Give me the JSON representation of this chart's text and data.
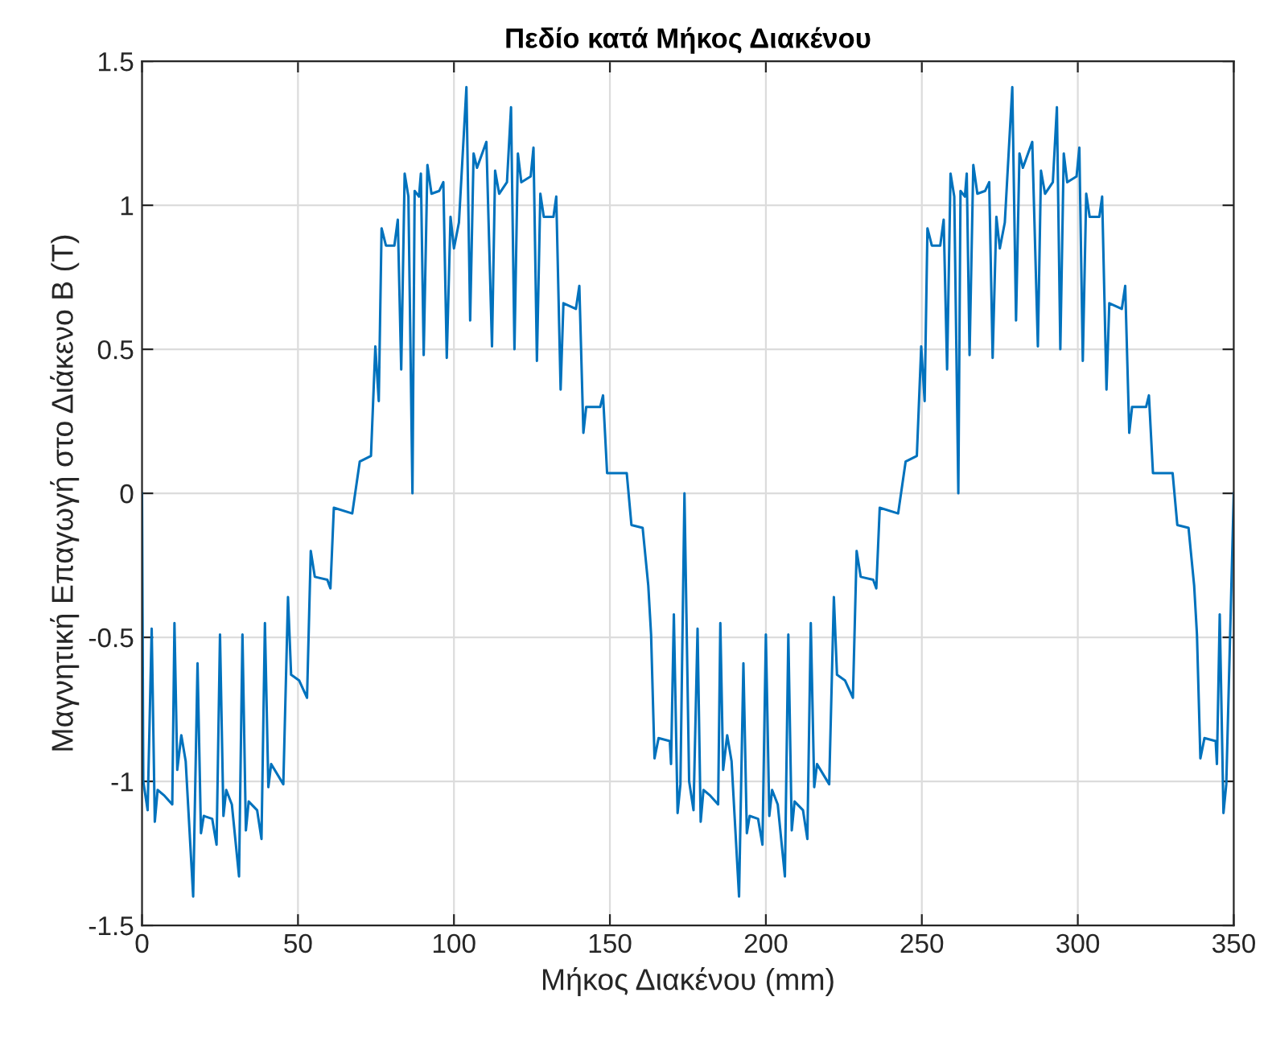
{
  "chart_data": {
    "type": "line",
    "title": "Πεδίο κατά Μήκος Διακένου",
    "xlabel": "Μήκος Διακένου (mm)",
    "ylabel": "Μαγνητική Επαγωγή στο Διάκενο B (T)",
    "xlim": [
      0,
      350
    ],
    "ylim": [
      -1.5,
      1.5
    ],
    "xticks": [
      0,
      50,
      100,
      150,
      200,
      250,
      300,
      350
    ],
    "yticks": [
      -1.5,
      -1,
      -0.5,
      0,
      0.5,
      1,
      1.5
    ],
    "grid": true,
    "line_style": "solid",
    "marker": "none",
    "series": [
      {
        "color": "#0072bd",
        "x": [
          0,
          0.4,
          1.8,
          3.1,
          4.1,
          5.0,
          7.2,
          9.7,
          10.4,
          11.3,
          12.6,
          14.0,
          16.4,
          17.8,
          18.9,
          19.8,
          22.5,
          23.9,
          25.0,
          26.1,
          27.0,
          28.8,
          31.1,
          32.2,
          33.3,
          34.2,
          36.9,
          38.3,
          39.4,
          40.5,
          41.4,
          45.3,
          46.8,
          47.8,
          50.4,
          52.9,
          54.1,
          55.4,
          59.4,
          60.4,
          61.5,
          67.4,
          69.8,
          73.4,
          74.8,
          75.9,
          76.8,
          78.2,
          80.9,
          82.0,
          83.1,
          84.2,
          85.4,
          86.7,
          87.4,
          88.8,
          89.4,
          90.3,
          91.5,
          92.8,
          95.3,
          96.6,
          97.7,
          98.9,
          100.0,
          101.6,
          104.0,
          105.2,
          106.3,
          107.4,
          110.4,
          112.2,
          113.2,
          114.5,
          117.0,
          118.3,
          119.4,
          120.5,
          121.6,
          124.6,
          125.5,
          126.6,
          127.7,
          128.8,
          131.9,
          132.8,
          134.2,
          135.1,
          139.1,
          140.2,
          141.5,
          142.4,
          146.9,
          147.8,
          149.1,
          155.4,
          156.9,
          160.5,
          162.3,
          163.2,
          164.3,
          165.6,
          169.2,
          169.6,
          170.5,
          171.7,
          172.6,
          173.9,
          175.4,
          176.8,
          178.1,
          179.1,
          180.0,
          182.2,
          184.7,
          185.4,
          186.3,
          187.6,
          189.0,
          191.4,
          192.8,
          193.9,
          194.8,
          197.5,
          198.9,
          200.0,
          201.1,
          202.0,
          203.8,
          206.1,
          207.2,
          208.3,
          209.2,
          211.9,
          213.3,
          214.4,
          215.5,
          216.4,
          220.3,
          221.8,
          222.8,
          225.4,
          227.9,
          229.1,
          230.4,
          234.4,
          235.4,
          236.5,
          242.4,
          244.8,
          248.4,
          249.8,
          250.9,
          251.8,
          253.2,
          255.9,
          257.0,
          258.1,
          259.2,
          260.4,
          261.7,
          262.4,
          263.8,
          264.4,
          265.3,
          266.5,
          267.8,
          270.3,
          271.6,
          272.7,
          273.9,
          275.0,
          276.6,
          279.0,
          280.2,
          281.3,
          282.4,
          285.4,
          287.2,
          288.2,
          289.5,
          292.0,
          293.3,
          294.4,
          295.5,
          296.6,
          299.6,
          300.5,
          301.6,
          302.7,
          303.8,
          306.9,
          307.8,
          309.2,
          310.1,
          314.1,
          315.2,
          316.5,
          317.4,
          321.9,
          322.8,
          324.1,
          330.4,
          331.9,
          335.5,
          337.3,
          338.2,
          339.3,
          340.6,
          344.2,
          344.6,
          345.5,
          346.7,
          347.6,
          350
        ],
        "values": [
          0,
          -1.0,
          -1.1,
          -0.47,
          -1.14,
          -1.03,
          -1.05,
          -1.08,
          -0.45,
          -0.96,
          -0.84,
          -0.93,
          -1.4,
          -0.59,
          -1.18,
          -1.12,
          -1.13,
          -1.22,
          -0.49,
          -1.12,
          -1.03,
          -1.08,
          -1.33,
          -0.49,
          -1.17,
          -1.07,
          -1.1,
          -1.2,
          -0.45,
          -1.02,
          -0.94,
          -1.01,
          -0.36,
          -0.63,
          -0.65,
          -0.71,
          -0.2,
          -0.29,
          -0.3,
          -0.33,
          -0.05,
          -0.07,
          0.11,
          0.13,
          0.51,
          0.32,
          0.92,
          0.86,
          0.86,
          0.95,
          0.43,
          1.11,
          1.03,
          0.0,
          1.05,
          1.03,
          1.11,
          0.48,
          1.14,
          1.04,
          1.05,
          1.08,
          0.47,
          0.96,
          0.85,
          0.94,
          1.41,
          0.6,
          1.18,
          1.13,
          1.22,
          0.51,
          1.12,
          1.04,
          1.08,
          1.34,
          0.5,
          1.18,
          1.08,
          1.1,
          1.2,
          0.46,
          1.04,
          0.96,
          0.96,
          1.03,
          0.36,
          0.66,
          0.64,
          0.72,
          0.21,
          0.3,
          0.3,
          0.34,
          0.07,
          0.07,
          -0.11,
          -0.12,
          -0.32,
          -0.49,
          -0.92,
          -0.85,
          -0.86,
          -0.94,
          -0.42,
          -1.11,
          -1.01,
          0.0,
          -1.0,
          -1.1,
          -0.47,
          -1.14,
          -1.03,
          -1.05,
          -1.08,
          -0.45,
          -0.96,
          -0.84,
          -0.93,
          -1.4,
          -0.59,
          -1.18,
          -1.12,
          -1.13,
          -1.22,
          -0.49,
          -1.12,
          -1.03,
          -1.08,
          -1.33,
          -0.49,
          -1.17,
          -1.07,
          -1.1,
          -1.2,
          -0.45,
          -1.02,
          -0.94,
          -1.01,
          -0.36,
          -0.63,
          -0.65,
          -0.71,
          -0.2,
          -0.29,
          -0.3,
          -0.33,
          -0.05,
          -0.07,
          0.11,
          0.13,
          0.51,
          0.32,
          0.92,
          0.86,
          0.86,
          0.95,
          0.43,
          1.11,
          1.03,
          0.0,
          1.05,
          1.03,
          1.11,
          0.48,
          1.14,
          1.04,
          1.05,
          1.08,
          0.47,
          0.96,
          0.85,
          0.94,
          1.41,
          0.6,
          1.18,
          1.13,
          1.22,
          0.51,
          1.12,
          1.04,
          1.08,
          1.34,
          0.5,
          1.18,
          1.08,
          1.1,
          1.2,
          0.46,
          1.04,
          0.96,
          0.96,
          1.03,
          0.36,
          0.66,
          0.64,
          0.72,
          0.21,
          0.3,
          0.3,
          0.34,
          0.07,
          0.07,
          -0.11,
          -0.12,
          -0.32,
          -0.49,
          -0.92,
          -0.85,
          -0.86,
          -0.94,
          -0.42,
          -1.11,
          -1.01,
          0.0
        ]
      }
    ]
  }
}
